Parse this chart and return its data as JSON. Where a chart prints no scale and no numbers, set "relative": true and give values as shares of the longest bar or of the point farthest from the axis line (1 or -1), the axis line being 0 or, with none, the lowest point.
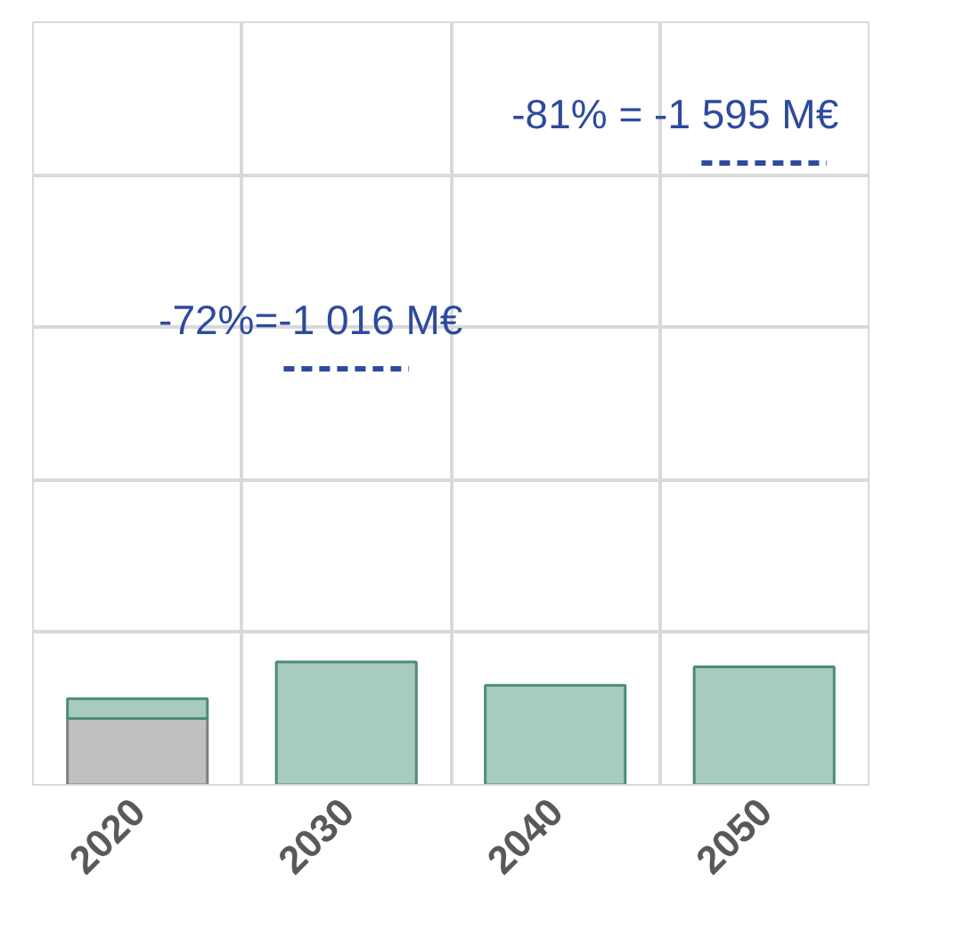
{
  "chart_data": {
    "type": "bar",
    "relative": true,
    "stacked": true,
    "categories": [
      "2020",
      "2030",
      "2040",
      "2050"
    ],
    "series": [
      {
        "color": "#c0c0c0",
        "values": [
          0.54,
          null,
          null,
          null
        ]
      },
      {
        "color": "#a8cbbf",
        "values": [
          0.16,
          1,
          0.81,
          0.96
        ]
      }
    ],
    "annotations": [
      "-72%=-1 016 M€",
      "-81% = -1 595 M€"
    ],
    "grid": true,
    "tick_labels": "x"
  }
}
